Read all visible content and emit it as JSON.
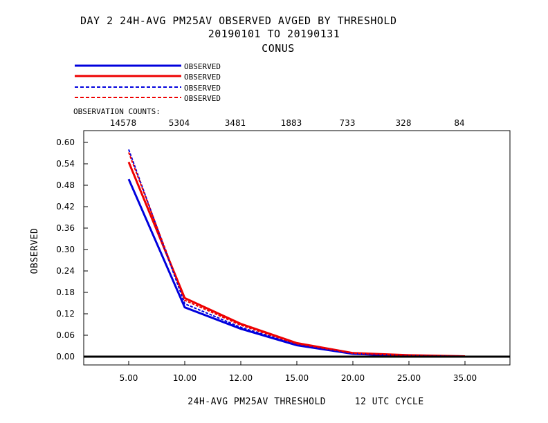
{
  "title_lines": [
    "DAY 2   24H-AVG PM25AV OBSERVED   AVGED BY THRESHOLD",
    "20190101 TO 20190131",
    "CONUS"
  ],
  "counts_label": "OBSERVATION COUNTS:",
  "chart_data": {
    "type": "line",
    "categories": [
      "5.00",
      "10.00",
      "12.00",
      "15.00",
      "20.00",
      "25.00",
      "35.00"
    ],
    "observation_counts": [
      "14578",
      "5304",
      "3481",
      "1883",
      "733",
      "328",
      "84"
    ],
    "xlabel": "24H-AVG PM25AV THRESHOLD     12 UTC CYCLE",
    "ylabel": "OBSERVED",
    "ylim": [
      0,
      0.6
    ],
    "yticks": [
      "0.00",
      "0.06",
      "0.12",
      "0.18",
      "0.24",
      "0.30",
      "0.36",
      "0.42",
      "0.48",
      "0.54",
      "0.60"
    ],
    "grid": false,
    "legend_placement": "top-left",
    "series": [
      {
        "name": "OBSERVED",
        "color": "#0000dd",
        "style": "solid",
        "values": [
          0.497,
          0.138,
          0.078,
          0.032,
          0.008,
          0.002,
          0.001
        ]
      },
      {
        "name": "OBSERVED",
        "color": "#ee0000",
        "style": "solid",
        "values": [
          0.545,
          0.164,
          0.092,
          0.038,
          0.01,
          0.004,
          0.001
        ]
      },
      {
        "name": "OBSERVED",
        "color": "#0000dd",
        "style": "dashed",
        "values": [
          0.58,
          0.148,
          0.082,
          0.034,
          0.009,
          0.003,
          0.001
        ]
      },
      {
        "name": "OBSERVED",
        "color": "#ee0000",
        "style": "dashed",
        "values": [
          0.572,
          0.158,
          0.088,
          0.036,
          0.01,
          0.003,
          0.001
        ]
      }
    ]
  }
}
